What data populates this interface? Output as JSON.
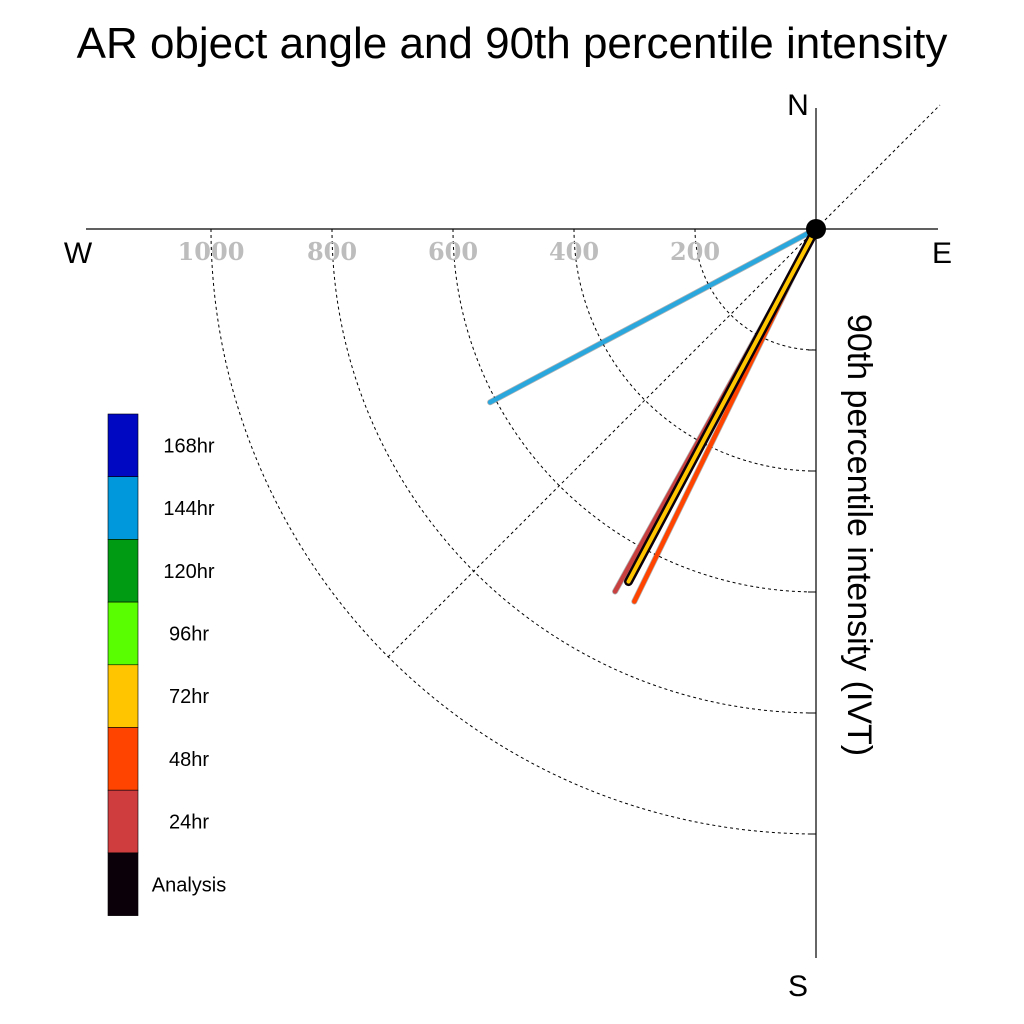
{
  "chart_data": {
    "type": "polar-vector",
    "title": "AR object angle and 90th percentile intensity",
    "ylabel": "90th percentile intensity (IVT)",
    "compass": {
      "north": "N",
      "east": "E",
      "south": "S",
      "west": "W"
    },
    "radial_ticks": [
      "200",
      "400",
      "600",
      "800",
      "1000"
    ],
    "radial_tick_values": [
      200,
      400,
      600,
      800,
      1000
    ],
    "radial_rings": [
      200,
      400,
      600,
      800,
      1000
    ],
    "r_max": 1000,
    "legend": [
      {
        "label": "168hr",
        "color": "#0008c2"
      },
      {
        "label": "144hr",
        "color": "#0098dd"
      },
      {
        "label": "120hr",
        "color": "#009a13"
      },
      {
        "label": "96hr",
        "color": "#59ff00"
      },
      {
        "label": "72hr",
        "color": "#ffc600"
      },
      {
        "label": "48hr",
        "color": "#ff4400"
      },
      {
        "label": "24hr",
        "color": "#cf3d3f"
      },
      {
        "label": "Analysis",
        "color": "#0b0009"
      }
    ],
    "series": [
      {
        "name": "144hr",
        "color": "#2aa7dd",
        "angle_deg": 242,
        "intensity": 610
      },
      {
        "name": "48hr",
        "color": "#ff4400",
        "angle_deg": 206,
        "intensity": 685
      },
      {
        "name": "24hr",
        "color": "#c84040",
        "angle_deg": 209,
        "intensity": 685
      },
      {
        "name": "Analysis",
        "color": "#0b0009",
        "angle_deg": 208,
        "intensity": 660
      },
      {
        "name": "72hr",
        "color": "#ffc600",
        "angle_deg": 208,
        "intensity": 660
      }
    ]
  }
}
